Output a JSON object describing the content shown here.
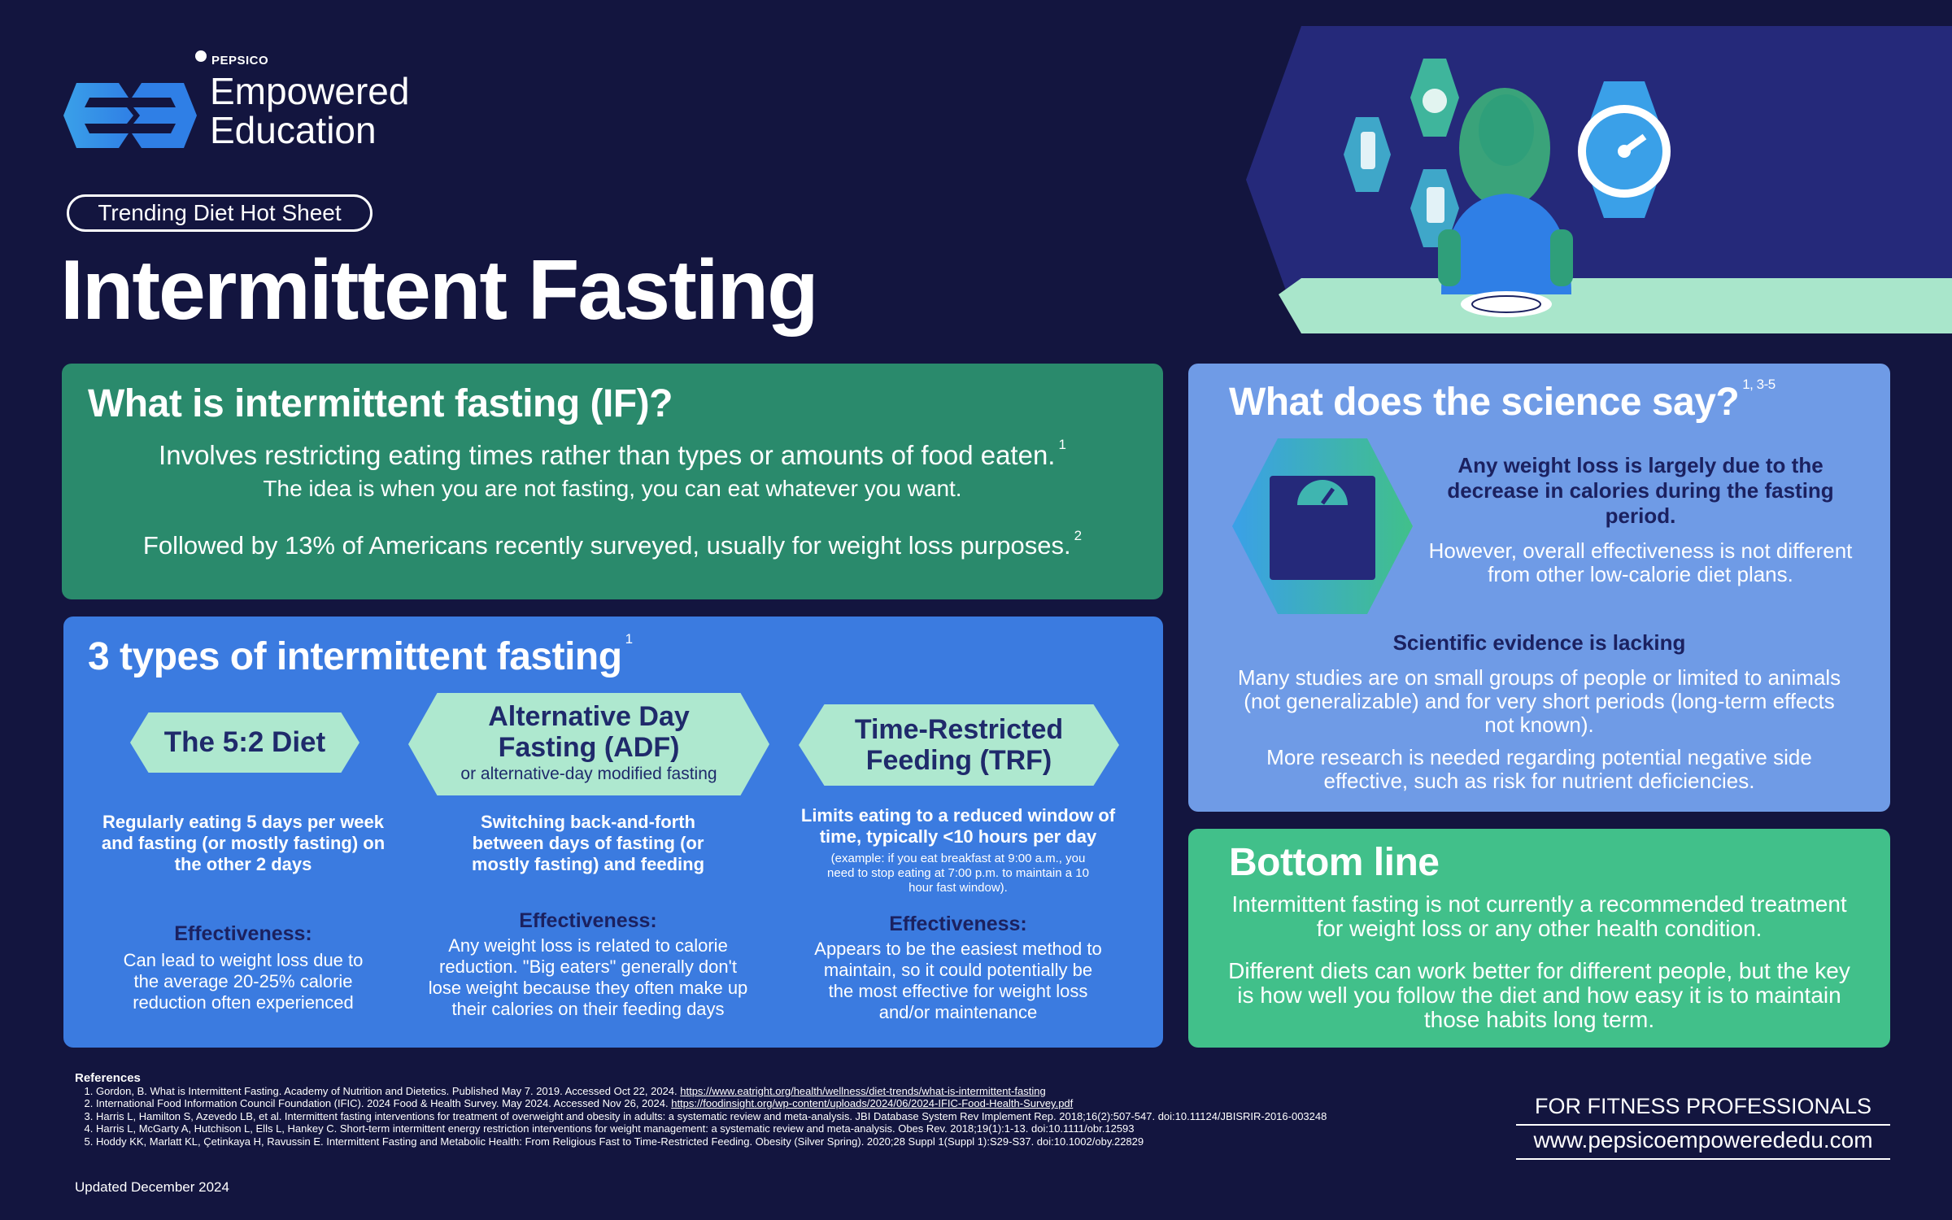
{
  "header": {
    "company": "PEPSICO",
    "brand_line1": "Empowered",
    "brand_line2": "Education",
    "pill": "Trending Diet Hot Sheet",
    "title": "Intermittent Fasting"
  },
  "what": {
    "title": "What is intermittent fasting (IF)?",
    "line1": "Involves restricting eating times rather than types or amounts of food eaten.",
    "line1_sup": "1",
    "line2": "The idea is when you are not fasting, you can eat whatever you want.",
    "line3": "Followed by 13% of Americans recently surveyed, usually for weight loss purposes.",
    "line3_sup": "2"
  },
  "types": {
    "title": "3 types of intermittent fasting",
    "title_sup": "1",
    "items": [
      {
        "name": "The 5:2 Diet",
        "desc": "Regularly eating 5 days per week and fasting (or mostly fasting) on the other 2 days",
        "eff_label": "Effectiveness:",
        "eff_text": "Can lead to weight loss due to the average 20-25% calorie reduction often experienced"
      },
      {
        "name_line1": "Alternative Day",
        "name_line2": "Fasting (ADF)",
        "sub": "or alternative-day modified fasting",
        "desc": "Switching back-and-forth between days of fasting (or mostly fasting) and feeding",
        "eff_label": "Effectiveness:",
        "eff_text": "Any weight loss is related to calorie reduction. \"Big eaters\" generally don't lose weight because they often make up their calories on their feeding days"
      },
      {
        "name_line1": "Time-Restricted",
        "name_line2": "Feeding (TRF)",
        "desc": "Limits eating to a reduced window of time, typically <10 hours per day",
        "example": "(example: if you eat breakfast at 9:00 a.m., you need to stop eating at 7:00 p.m. to maintain a 10 hour fast window).",
        "eff_label": "Effectiveness:",
        "eff_text": "Appears to be the easiest method to maintain, so it could potentially be the most effective for weight loss and/or maintenance"
      }
    ]
  },
  "science": {
    "title": "What does the science say?",
    "title_sup": "1, 3-5",
    "bold1": "Any weight loss is largely due to the decrease in calories during the fasting period.",
    "text1": "However, overall effectiveness is not different from other low-calorie diet plans.",
    "bold2": "Scientific evidence is lacking",
    "text2": "Many studies are on small groups of people or limited to animals (not generalizable) and for very short periods (long-term effects not known).",
    "text3": "More research is needed regarding potential negative side effective, such as risk for nutrient deficiencies."
  },
  "bottom": {
    "title": "Bottom line",
    "text1": "Intermittent fasting is not currently a recommended treatment for weight loss or any other health condition.",
    "text2": "Different diets can work better for different people, but the key is how well you follow the diet and how easy it is to maintain those habits long term."
  },
  "references": {
    "heading": "References",
    "items": [
      {
        "text": "Gordon, B. What is Intermittent Fasting. Academy of Nutrition and Dietetics. Published May 7. 2019. Accessed Oct 22, 2024. ",
        "link": "https://www.eatright.org/health/wellness/diet-trends/what-is-intermittent-fasting"
      },
      {
        "text": "International Food Information Council Foundation (IFIC). 2024 Food & Health Survey. May 2024. Accessed Nov 26, 2024. ",
        "link": "https://foodinsight.org/wp-content/uploads/2024/06/2024-IFIC-Food-Health-Survey.pdf"
      },
      {
        "text": "Harris L, Hamilton S, Azevedo LB, et al. Intermittent fasting interventions for treatment of overweight and obesity in adults: a systematic review and meta-analysis. JBI Database System Rev Implement Rep. 2018;16(2):507-547. doi:10.11124/JBISRIR-2016-003248",
        "link": ""
      },
      {
        "text": "Harris L, McGarty A, Hutchison L, Ells L, Hankey C. Short-term intermittent energy restriction interventions for weight management: a systematic review and meta-analysis. Obes Rev. 2018;19(1):1-13. doi:10.1111/obr.12593",
        "link": ""
      },
      {
        "text": "Hoddy KK, Marlatt KL, Çetinkaya H, Ravussin E. Intermittent Fasting and Metabolic Health: From Religious Fast to Time-Restricted Feeding. Obesity (Silver Spring). 2020;28 Suppl 1(Suppl 1):S29-S37. doi:10.1002/oby.22829",
        "link": ""
      }
    ]
  },
  "updated": "Updated December 2024",
  "footer": {
    "audience": "FOR FITNESS PROFESSIONALS",
    "url": "www.pepsicoempowerededu.com"
  },
  "icons": [
    "empowered-education-logo",
    "pepsico-globe-icon",
    "bottle-icon",
    "meat-icon",
    "milk-icon",
    "stopwatch-icon",
    "person-illustration",
    "scale-icon"
  ],
  "colors": {
    "background": "#13153f",
    "what_panel": "#2a8a6c",
    "types_panel": "#3b7be0",
    "science_panel": "#6f9be6",
    "bottom_panel": "#41c08a",
    "label_mint": "#aee8cf",
    "navy_text": "#1b2160"
  }
}
